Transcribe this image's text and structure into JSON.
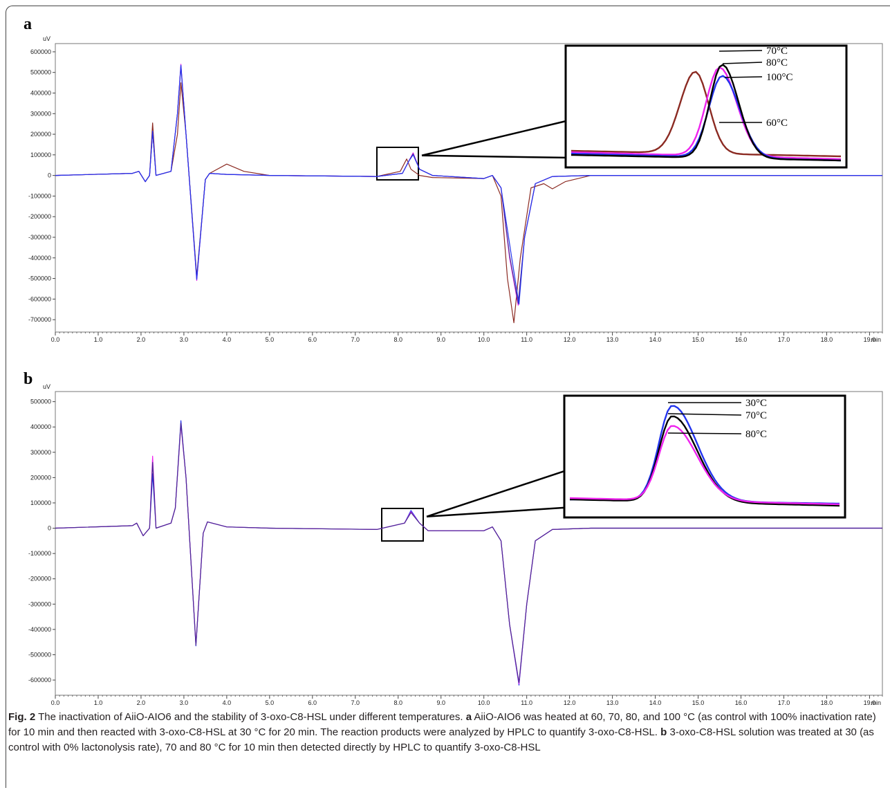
{
  "panels": [
    {
      "letter": "a",
      "unit_y": "uV",
      "unit_x": "min",
      "y_ticks": [
        "600000",
        "500000",
        "400000",
        "300000",
        "200000",
        "100000",
        "0",
        "-100000",
        "-200000",
        "-300000",
        "-400000",
        "-500000",
        "-600000",
        "-700000"
      ],
      "x_ticks": [
        "0.0",
        "1.0",
        "2.0",
        "3.0",
        "4.0",
        "5.0",
        "6.0",
        "7.0",
        "8.0",
        "9.0",
        "10.0",
        "11.0",
        "12.0",
        "13.0",
        "14.0",
        "15.0",
        "16.0",
        "17.0",
        "18.0",
        "19.0"
      ],
      "inset_labels": [
        "70°C",
        "80°C",
        "100°C",
        "60°C"
      ]
    },
    {
      "letter": "b",
      "unit_y": "uV",
      "unit_x": "min",
      "y_ticks": [
        "500000",
        "400000",
        "300000",
        "200000",
        "100000",
        "0",
        "-100000",
        "-200000",
        "-300000",
        "-400000",
        "-500000",
        "-600000"
      ],
      "x_ticks": [
        "0.0",
        "1.0",
        "2.0",
        "3.0",
        "4.0",
        "5.0",
        "6.0",
        "7.0",
        "8.0",
        "9.0",
        "10.0",
        "11.0",
        "12.0",
        "13.0",
        "14.0",
        "15.0",
        "16.0",
        "17.0",
        "18.0",
        "19.0"
      ],
      "inset_labels": [
        "30°C",
        "70°C",
        "80°C"
      ]
    }
  ],
  "caption": {
    "fig_label": "Fig. 2",
    "text_1": "  The inactivation of AiiO-AIO6 and the stability of 3-oxo-C8-HSL under different temperatures. ",
    "bold_a": "a",
    "text_2": " AiiO-AIO6 was heated at 60, 70, 80, and 100 °C (as control with 100% inactivation rate) for 10 min and then reacted with 3-oxo-C8-HSL at 30 °C for 20 min. The reaction products were analyzed by HPLC to quantify 3-oxo-C8-HSL. ",
    "bold_b": "b",
    "text_3": " 3-oxo-C8-HSL solution was treated at 30 (as control with 0% lactonolysis rate), 70 and 80 °C for 10 min then detected directly by HPLC to quantify 3-oxo-C8-HSL"
  },
  "colors": {
    "red": "#8b2a22",
    "blue": "#2233ee",
    "magenta": "#ee22ee",
    "black": "#000000",
    "purple": "#4a2a90"
  },
  "chart_data": [
    {
      "type": "line",
      "xlabel": "min",
      "ylabel": "uV",
      "xlim": [
        0,
        19.3
      ],
      "ylim": [
        -760000,
        640000
      ],
      "series_curves": [
        {
          "name": "60°C",
          "x": [
            0,
            1.8,
            1.95,
            2.1,
            2.2,
            2.27,
            2.35,
            2.7,
            2.85,
            2.93,
            3.05,
            3.3,
            3.5,
            3.6,
            4.0,
            4.4,
            5.0,
            7.5,
            8.05,
            8.2,
            8.3,
            8.5,
            8.8,
            10.0,
            10.2,
            10.4,
            10.55,
            10.7,
            10.85,
            11.1,
            11.4,
            11.6,
            11.9,
            12.5,
            19.3
          ],
          "y": [
            0,
            10000,
            20000,
            -30000,
            0,
            255000,
            0,
            20000,
            200000,
            450000,
            200000,
            -490000,
            -20000,
            10000,
            55000,
            20000,
            0,
            -5000,
            20000,
            80000,
            30000,
            0,
            -10000,
            -15000,
            0,
            -100000,
            -500000,
            -715000,
            -400000,
            -60000,
            -40000,
            -65000,
            -30000,
            0,
            0
          ]
        },
        {
          "name": "70°C",
          "x": [
            0,
            1.8,
            1.95,
            2.1,
            2.2,
            2.27,
            2.35,
            2.7,
            2.85,
            2.93,
            3.05,
            3.3,
            3.5,
            3.6,
            4.0,
            5.0,
            7.5,
            8.1,
            8.25,
            8.35,
            8.5,
            8.8,
            10.0,
            10.2,
            10.4,
            10.6,
            10.8,
            10.95,
            11.2,
            11.6,
            12.5,
            19.3
          ],
          "y": [
            0,
            10000,
            20000,
            -30000,
            0,
            215000,
            0,
            20000,
            300000,
            540000,
            200000,
            -510000,
            -20000,
            10000,
            5000,
            0,
            -5000,
            10000,
            70000,
            110000,
            30000,
            0,
            -15000,
            0,
            -60000,
            -400000,
            -630000,
            -300000,
            -40000,
            -5000,
            0,
            0
          ]
        },
        {
          "name": "80°C",
          "x": [
            0,
            1.8,
            1.95,
            2.1,
            2.2,
            2.27,
            2.35,
            2.7,
            2.85,
            2.93,
            3.05,
            3.3,
            3.5,
            3.6,
            4.0,
            5.0,
            7.5,
            8.1,
            8.25,
            8.35,
            8.5,
            8.8,
            10.0,
            10.2,
            10.4,
            10.6,
            10.8,
            10.95,
            11.2,
            11.6,
            12.5,
            19.3
          ],
          "y": [
            0,
            10000,
            20000,
            -30000,
            0,
            210000,
            0,
            20000,
            300000,
            530000,
            200000,
            -500000,
            -20000,
            10000,
            5000,
            0,
            -5000,
            10000,
            70000,
            105000,
            30000,
            0,
            -15000,
            0,
            -60000,
            -390000,
            -620000,
            -300000,
            -40000,
            -5000,
            0,
            0
          ]
        },
        {
          "name": "100°C",
          "x": [
            0,
            1.8,
            1.95,
            2.1,
            2.2,
            2.27,
            2.35,
            2.7,
            2.85,
            2.93,
            3.05,
            3.3,
            3.5,
            3.6,
            4.0,
            5.0,
            7.5,
            8.1,
            8.25,
            8.35,
            8.5,
            8.8,
            10.0,
            10.2,
            10.4,
            10.65,
            10.82,
            10.95,
            11.2,
            11.6,
            12.5,
            19.3
          ],
          "y": [
            0,
            10000,
            20000,
            -30000,
            0,
            215000,
            0,
            20000,
            300000,
            535000,
            200000,
            -505000,
            -20000,
            10000,
            5000,
            0,
            -5000,
            10000,
            70000,
            100000,
            30000,
            0,
            -15000,
            0,
            -60000,
            -400000,
            -625000,
            -300000,
            -40000,
            -5000,
            0,
            0
          ]
        }
      ]
    },
    {
      "type": "line",
      "xlabel": "min",
      "ylabel": "uV",
      "xlim": [
        0,
        19.3
      ],
      "ylim": [
        -660000,
        540000
      ],
      "series_curves": [
        {
          "name": "30°C",
          "x": [
            0,
            1.8,
            1.9,
            2.05,
            2.2,
            2.27,
            2.35,
            2.7,
            2.8,
            2.93,
            3.05,
            3.28,
            3.45,
            3.55,
            4.0,
            5.0,
            7.5,
            8.15,
            8.3,
            8.5,
            8.7,
            10.0,
            10.2,
            10.4,
            10.6,
            10.82,
            11.0,
            11.2,
            11.6,
            12.5,
            19.3
          ],
          "y": [
            0,
            10000,
            20000,
            -30000,
            0,
            215000,
            0,
            20000,
            80000,
            425000,
            200000,
            -465000,
            -20000,
            25000,
            5000,
            0,
            -5000,
            20000,
            70000,
            20000,
            -10000,
            -10000,
            5000,
            -50000,
            -380000,
            -620000,
            -300000,
            -50000,
            -5000,
            0,
            0
          ]
        },
        {
          "name": "70°C",
          "x": [
            0,
            1.8,
            1.9,
            2.05,
            2.2,
            2.27,
            2.35,
            2.7,
            2.8,
            2.93,
            3.05,
            3.28,
            3.45,
            3.55,
            4.0,
            5.0,
            7.5,
            8.15,
            8.3,
            8.5,
            8.7,
            10.0,
            10.2,
            10.4,
            10.6,
            10.82,
            11.0,
            11.2,
            11.6,
            12.5,
            19.3
          ],
          "y": [
            0,
            10000,
            20000,
            -30000,
            0,
            285000,
            0,
            20000,
            80000,
            410000,
            200000,
            -460000,
            -20000,
            25000,
            5000,
            0,
            -5000,
            20000,
            65000,
            20000,
            -10000,
            -10000,
            5000,
            -50000,
            -380000,
            -615000,
            -300000,
            -50000,
            -5000,
            0,
            0
          ]
        },
        {
          "name": "80°C",
          "x": [
            0,
            1.8,
            1.9,
            2.05,
            2.2,
            2.27,
            2.35,
            2.7,
            2.8,
            2.93,
            3.05,
            3.28,
            3.45,
            3.55,
            4.0,
            5.0,
            7.5,
            8.15,
            8.3,
            8.5,
            8.7,
            10.0,
            10.2,
            10.4,
            10.6,
            10.82,
            11.0,
            11.2,
            11.6,
            12.5,
            19.3
          ],
          "y": [
            0,
            10000,
            20000,
            -30000,
            0,
            260000,
            0,
            20000,
            80000,
            415000,
            200000,
            -462000,
            -20000,
            25000,
            5000,
            0,
            -5000,
            20000,
            62000,
            20000,
            -10000,
            -10000,
            5000,
            -50000,
            -380000,
            -610000,
            -300000,
            -50000,
            -5000,
            0,
            0
          ]
        }
      ]
    }
  ]
}
